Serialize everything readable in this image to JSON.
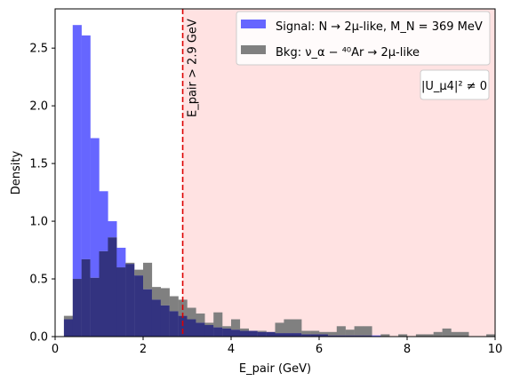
{
  "chart_data": {
    "type": "bar",
    "subtype": "overlaid-histogram",
    "xlabel": "E_pair (GeV)",
    "ylabel": "Density",
    "xlim": [
      0,
      10
    ],
    "ylim": [
      0,
      2.84
    ],
    "xticks": [
      "0",
      "2",
      "4",
      "6",
      "8",
      "10"
    ],
    "yticks": [
      "0.0",
      "0.5",
      "1.0",
      "1.5",
      "2.0",
      "2.5"
    ],
    "grid": false,
    "legend_position": "top-right",
    "bin_width": 0.2,
    "bin_start": 0.2,
    "series": [
      {
        "name": "Signal: N → 2μ-like, M_N = 369 MeV",
        "color": "#6666ff",
        "values": [
          0.15,
          2.7,
          2.61,
          1.72,
          1.26,
          1.0,
          0.77,
          0.63,
          0.53,
          0.41,
          0.32,
          0.27,
          0.22,
          0.18,
          0.15,
          0.12,
          0.1,
          0.08,
          0.07,
          0.06,
          0.05,
          0.05,
          0.04,
          0.04,
          0.03,
          0.03,
          0.03,
          0.02,
          0.02,
          0.02,
          0.01,
          0.01,
          0.01,
          0.01,
          0.01,
          0.01,
          0,
          0,
          0,
          0,
          0,
          0,
          0,
          0,
          0,
          0,
          0,
          0,
          0
        ]
      },
      {
        "name": "Bkg: ν_α − ⁴⁰Ar → 2μ-like",
        "color": "#808080",
        "values": [
          0.18,
          0.5,
          0.67,
          0.51,
          0.74,
          0.86,
          0.6,
          0.64,
          0.58,
          0.64,
          0.43,
          0.42,
          0.35,
          0.32,
          0.25,
          0.2,
          0.12,
          0.21,
          0.09,
          0.15,
          0.07,
          0.05,
          0.05,
          0.04,
          0.12,
          0.15,
          0.15,
          0.05,
          0.05,
          0.04,
          0.04,
          0.09,
          0.06,
          0.09,
          0.09,
          0,
          0.02,
          0,
          0.02,
          0,
          0.02,
          0.02,
          0.04,
          0.07,
          0.04,
          0.04,
          0,
          0,
          0.02
        ]
      }
    ],
    "overlap_color": "#333380",
    "cut": {
      "value": 2.9,
      "label": "E_pair > 2.9 GeV",
      "color": "#dd0000",
      "region_color": "#ffe2e2"
    },
    "annotation": "|U_μ4|² ≠ 0"
  }
}
